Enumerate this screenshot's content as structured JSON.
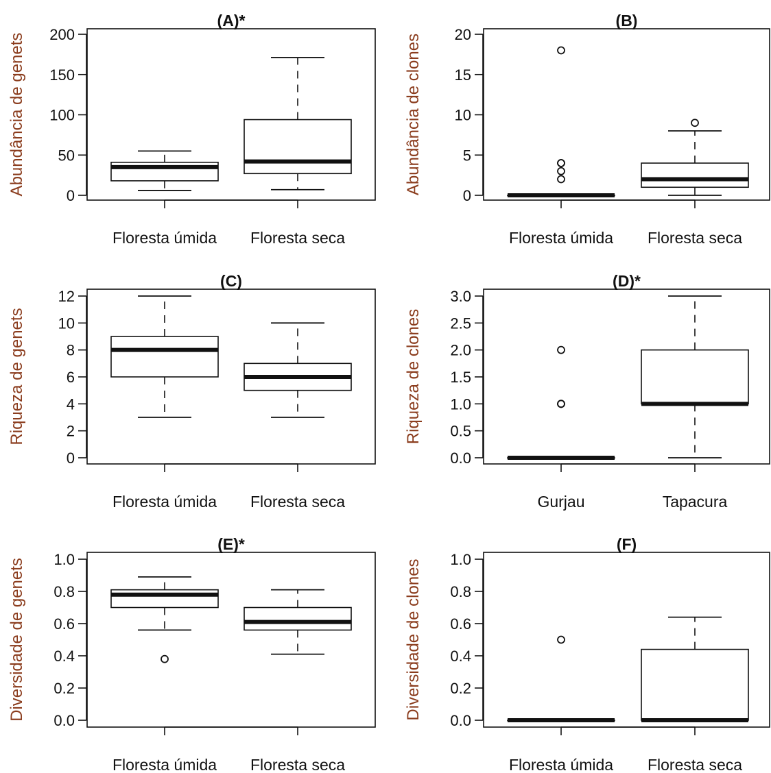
{
  "colors": {
    "ink": "#111111",
    "axis_title": "#8b3d1e",
    "box_fill": "#ffffff",
    "background": "#ffffff"
  },
  "chart_data": [
    {
      "type": "boxplot",
      "title": "(A)*",
      "ylabel": "Abundância de genets",
      "categories": [
        "Floresta úmida",
        "Floresta seca"
      ],
      "ylim": [
        0,
        200
      ],
      "yticks": [
        0,
        50,
        100,
        150,
        200
      ],
      "boxes": [
        {
          "whisker_low": 6,
          "q1": 18,
          "median": 35,
          "q3": 41,
          "whisker_high": 55,
          "outliers": []
        },
        {
          "whisker_low": 7,
          "q1": 27,
          "median": 42,
          "q3": 94,
          "whisker_high": 171,
          "outliers": []
        }
      ]
    },
    {
      "type": "boxplot",
      "title": "(B)",
      "ylabel": "Abundância de clones",
      "categories": [
        "Floresta úmida",
        "Floresta seca"
      ],
      "ylim": [
        0,
        20
      ],
      "yticks": [
        0,
        5,
        10,
        15,
        20
      ],
      "boxes": [
        {
          "whisker_low": 0,
          "q1": 0,
          "median": 0,
          "q3": 0,
          "whisker_high": 0,
          "outliers": [
            2,
            3,
            4,
            4,
            18
          ]
        },
        {
          "whisker_low": 0,
          "q1": 1,
          "median": 2,
          "q3": 4,
          "whisker_high": 8,
          "outliers": [
            9
          ]
        }
      ]
    },
    {
      "type": "boxplot",
      "title": "(C)",
      "ylabel": "Riqueza de genets",
      "categories": [
        "Floresta úmida",
        "Floresta seca"
      ],
      "ylim": [
        0,
        12
      ],
      "yticks": [
        0,
        2,
        4,
        6,
        8,
        10,
        12
      ],
      "boxes": [
        {
          "whisker_low": 3,
          "q1": 6,
          "median": 8,
          "q3": 9,
          "whisker_high": 12,
          "outliers": []
        },
        {
          "whisker_low": 3,
          "q1": 5,
          "median": 6,
          "q3": 7,
          "whisker_high": 10,
          "outliers": []
        }
      ]
    },
    {
      "type": "boxplot",
      "title": "(D)*",
      "ylabel": "Riqueza de clones",
      "categories": [
        "Gurjau",
        "Tapacura"
      ],
      "ylim": [
        0,
        3
      ],
      "yticks": [
        "0.0",
        "0.5",
        "1.0",
        "1.5",
        "2.0",
        "2.5",
        "3.0"
      ],
      "boxes": [
        {
          "whisker_low": 0,
          "q1": 0,
          "median": 0,
          "q3": 0,
          "whisker_high": 0,
          "outliers": [
            1,
            1,
            2
          ]
        },
        {
          "whisker_low": 0,
          "q1": 1,
          "median": 1,
          "q3": 2,
          "whisker_high": 3,
          "outliers": []
        }
      ]
    },
    {
      "type": "boxplot",
      "title": "(E)*",
      "ylabel": "Diversidade de genets",
      "categories": [
        "Floresta úmida",
        "Floresta seca"
      ],
      "ylim": [
        0,
        1
      ],
      "yticks": [
        "0.0",
        "0.2",
        "0.4",
        "0.6",
        "0.8",
        "1.0"
      ],
      "boxes": [
        {
          "whisker_low": 0.56,
          "q1": 0.7,
          "median": 0.78,
          "q3": 0.81,
          "whisker_high": 0.89,
          "outliers": [
            0.38
          ]
        },
        {
          "whisker_low": 0.41,
          "q1": 0.56,
          "median": 0.61,
          "q3": 0.7,
          "whisker_high": 0.81,
          "outliers": []
        }
      ]
    },
    {
      "type": "boxplot",
      "title": "(F)",
      "ylabel": "Diversidade de clones",
      "categories": [
        "Floresta úmida",
        "Floresta seca"
      ],
      "ylim": [
        0,
        1
      ],
      "yticks": [
        "0.0",
        "0.2",
        "0.4",
        "0.6",
        "0.8",
        "1.0"
      ],
      "boxes": [
        {
          "whisker_low": 0,
          "q1": 0,
          "median": 0,
          "q3": 0,
          "whisker_high": 0,
          "outliers": [
            0.5
          ]
        },
        {
          "whisker_low": 0,
          "q1": 0,
          "median": 0,
          "q3": 0.44,
          "whisker_high": 0.64,
          "outliers": []
        }
      ]
    }
  ]
}
